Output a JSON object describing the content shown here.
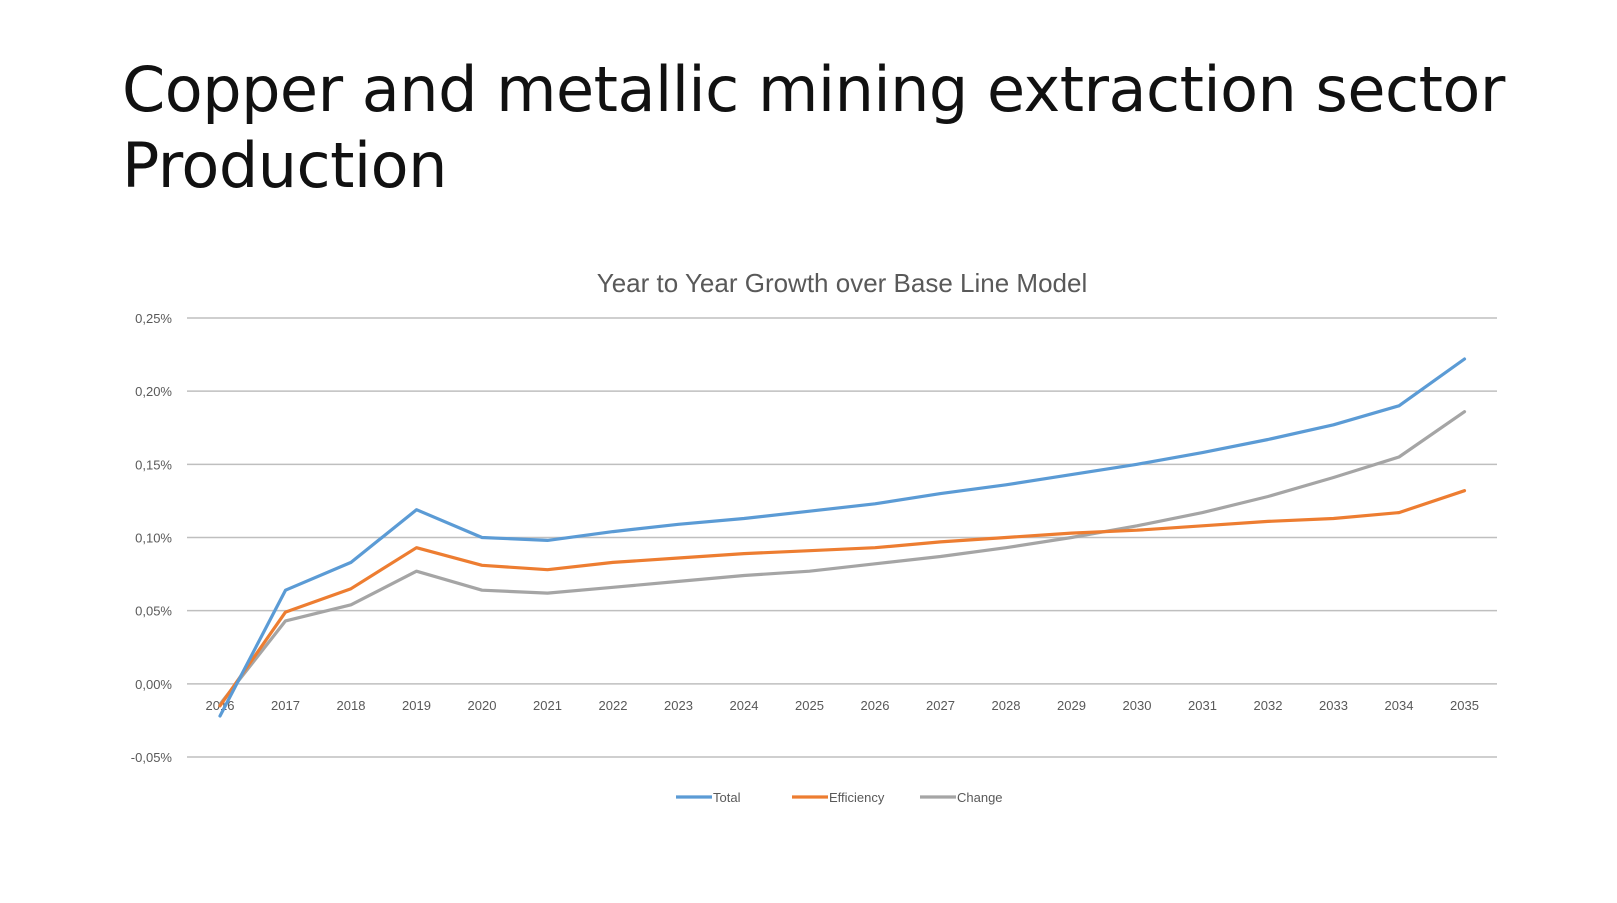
{
  "slide": {
    "title_line1": "Copper and metallic mining extraction sector",
    "title_line2": "Production"
  },
  "chart_data": {
    "type": "line",
    "title": "Year to Year Growth over Base Line Model",
    "x": [
      "2016",
      "2017",
      "2018",
      "2019",
      "2020",
      "2021",
      "2022",
      "2023",
      "2024",
      "2025",
      "2026",
      "2027",
      "2028",
      "2029",
      "2030",
      "2031",
      "2032",
      "2033",
      "2034",
      "2035"
    ],
    "y_ticks": [
      0.25,
      0.2,
      0.15,
      0.1,
      0.05,
      0.0,
      -0.05
    ],
    "y_tick_labels": [
      "0,25%",
      "0,20%",
      "0,15%",
      "0,10%",
      "0,05%",
      "0,00%",
      "-0,05%"
    ],
    "ylim": [
      -0.05,
      0.25
    ],
    "y_unit": "%",
    "grid": true,
    "legend_position": "bottom",
    "series": [
      {
        "name": "Total",
        "color": "#5b9bd5",
        "values": [
          -0.022,
          0.064,
          0.083,
          0.119,
          0.1,
          0.098,
          0.104,
          0.109,
          0.113,
          0.118,
          0.123,
          0.13,
          0.136,
          0.143,
          0.15,
          0.158,
          0.167,
          0.177,
          0.19,
          0.222
        ]
      },
      {
        "name": "Efficiency",
        "color": "#ed7d31",
        "values": [
          -0.015,
          0.049,
          0.065,
          0.093,
          0.081,
          0.078,
          0.083,
          0.086,
          0.089,
          0.091,
          0.093,
          0.097,
          0.1,
          0.103,
          0.105,
          0.108,
          0.111,
          0.113,
          0.117,
          0.132
        ]
      },
      {
        "name": "Change",
        "color": "#a5a5a5",
        "values": [
          -0.014,
          0.043,
          0.054,
          0.077,
          0.064,
          0.062,
          0.066,
          0.07,
          0.074,
          0.077,
          0.082,
          0.087,
          0.093,
          0.1,
          0.108,
          0.117,
          0.128,
          0.141,
          0.155,
          0.186
        ]
      }
    ]
  }
}
